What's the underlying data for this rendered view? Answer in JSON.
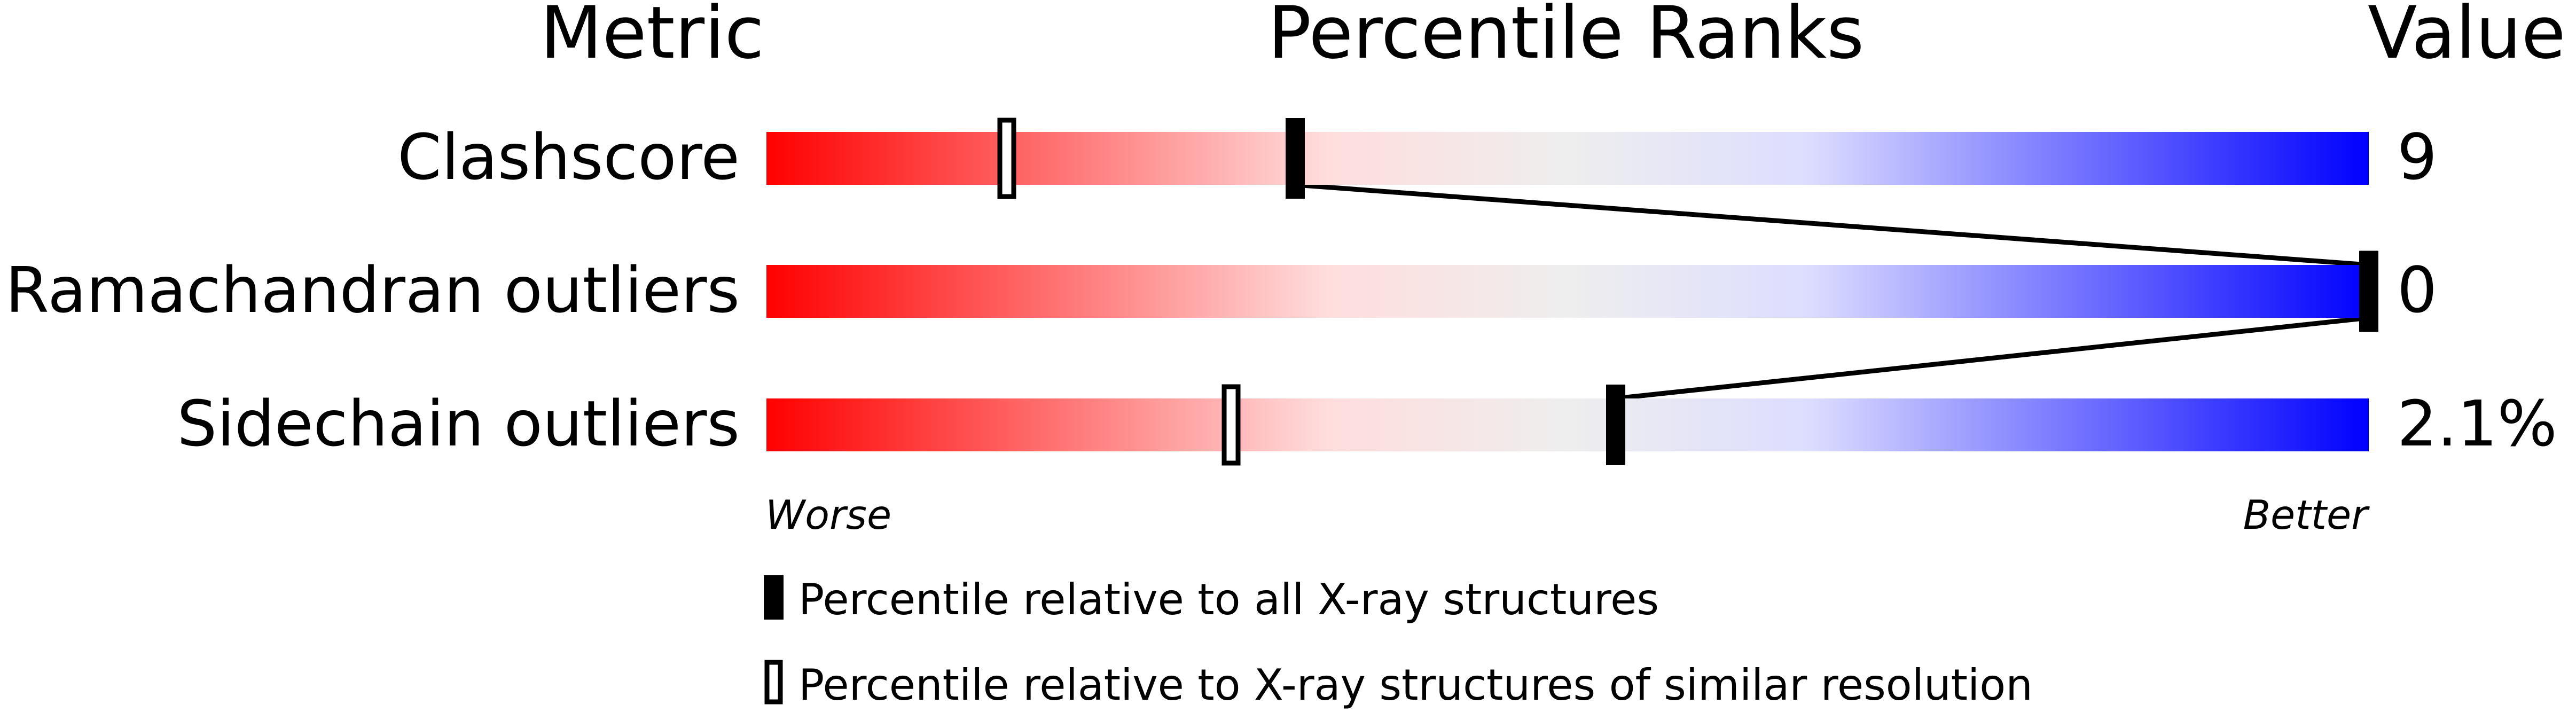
{
  "chart_data": {
    "type": "bar",
    "headers": {
      "metric": "Metric",
      "percentile": "Percentile Ranks",
      "value": "Value"
    },
    "xlim": [
      0,
      100
    ],
    "metrics": [
      {
        "name": "Clashscore",
        "value": "9",
        "percentile_all": 33,
        "percentile_similar": 15
      },
      {
        "name": "Ramachandran outliers",
        "value": "0",
        "percentile_all": 100,
        "percentile_similar": 100
      },
      {
        "name": "Sidechain outliers",
        "value": "2.1%",
        "percentile_all": 53,
        "percentile_similar": 29
      }
    ],
    "scale_labels": {
      "worse": "Worse",
      "better": "Better"
    },
    "gradient_colors": [
      "#ff0000",
      "#ffdddd",
      "#eeeeee",
      "#ddddff",
      "#0000ff"
    ],
    "legend": {
      "all": "Percentile relative to all X-ray structures",
      "similar": "Percentile relative to X-ray structures of similar resolution"
    }
  }
}
